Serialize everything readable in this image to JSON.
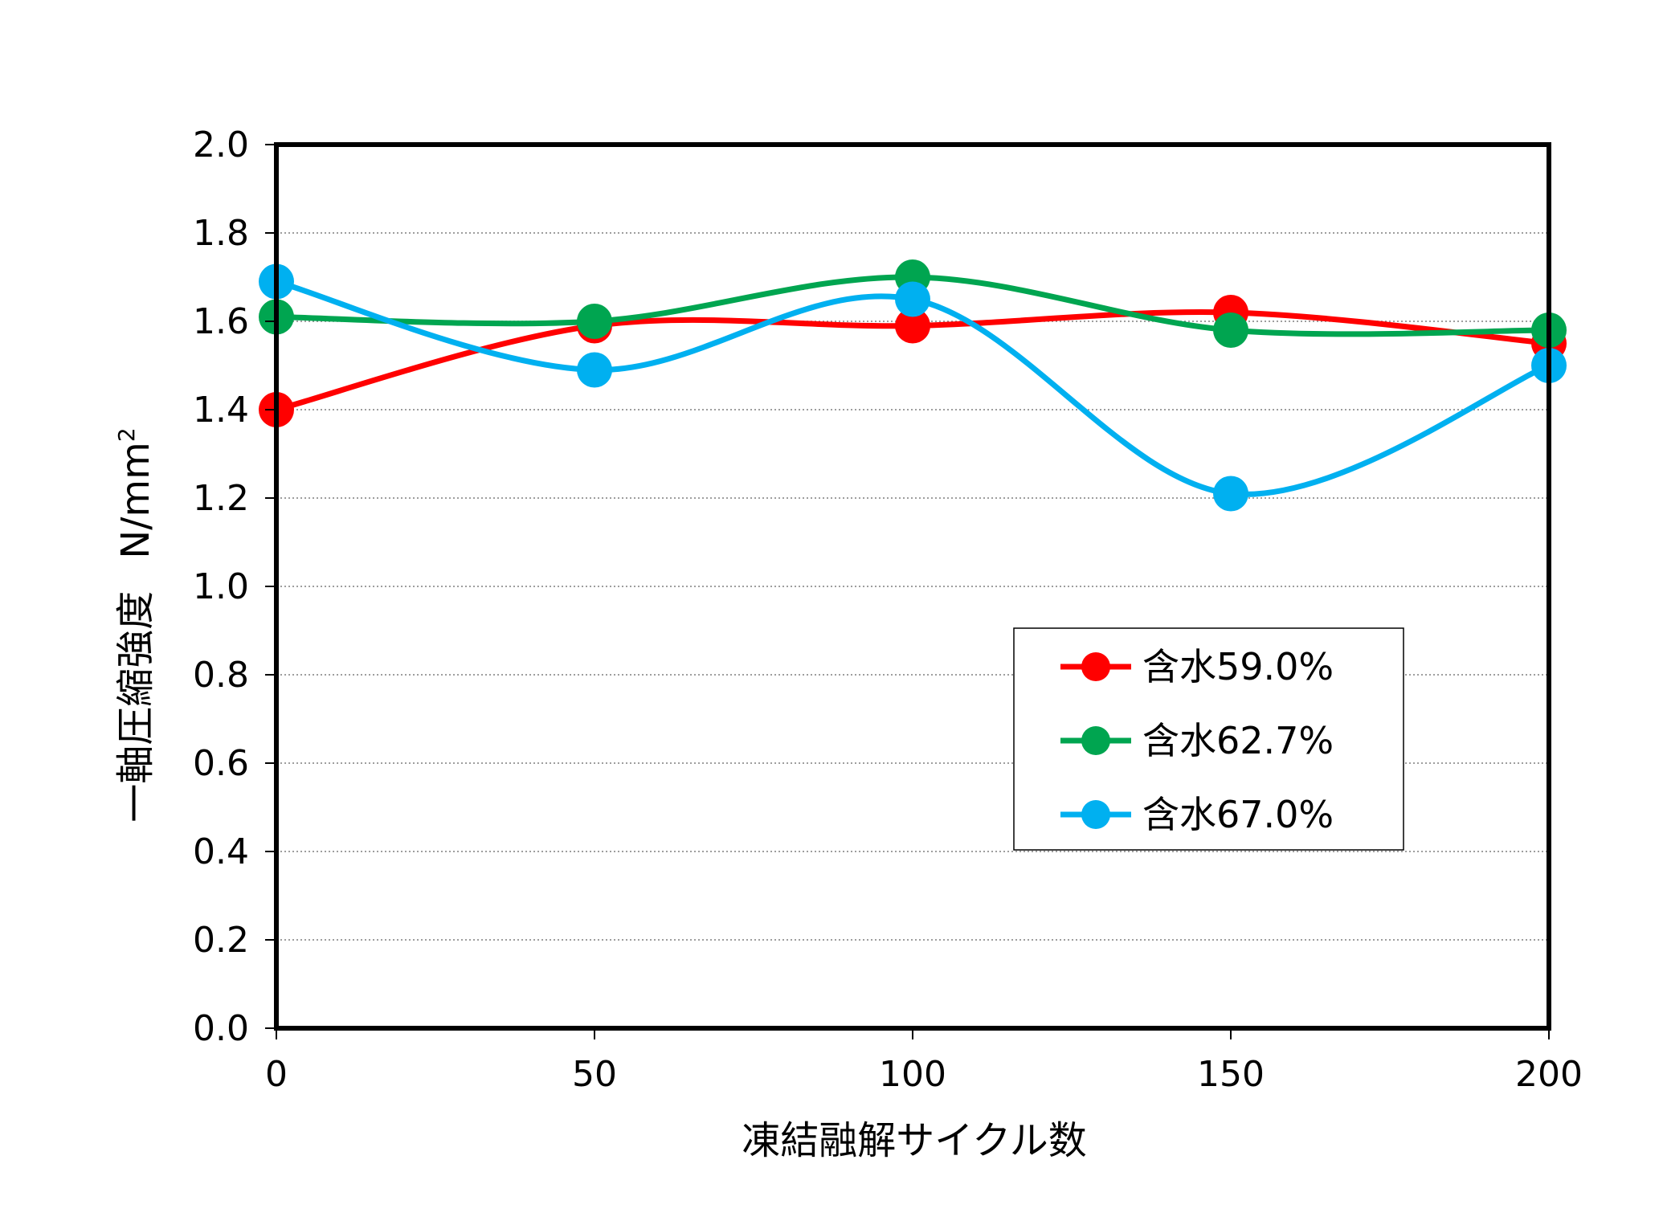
{
  "chart_data": {
    "type": "line",
    "smooth": true,
    "xlabel": "凍結融解サイクル数",
    "ylabel": "一軸圧縮強度",
    "ylabel_unit": "N/mm",
    "ylabel_unit_sup": "2",
    "x": [
      0,
      50,
      100,
      150,
      200
    ],
    "x_ticks": [
      "0",
      "50",
      "100",
      "150",
      "200"
    ],
    "xlim": [
      0,
      200
    ],
    "ylim": [
      0,
      2.0
    ],
    "y_ticks": [
      "0.0",
      "0.2",
      "0.4",
      "0.6",
      "0.8",
      "1.0",
      "1.2",
      "1.4",
      "1.6",
      "1.8",
      "2.0"
    ],
    "grid": "horizontal-dotted",
    "legend_position": "center-right",
    "series": [
      {
        "name": "含水59.0%",
        "color": "#ff0000",
        "values": [
          1.4,
          1.59,
          1.59,
          1.62,
          1.55
        ]
      },
      {
        "name": "含水62.7%",
        "color": "#00a550",
        "values": [
          1.61,
          1.6,
          1.7,
          1.58,
          1.58
        ]
      },
      {
        "name": "含水67.0%",
        "color": "#00b0f0",
        "values": [
          1.69,
          1.49,
          1.65,
          1.21,
          1.5
        ]
      }
    ]
  }
}
